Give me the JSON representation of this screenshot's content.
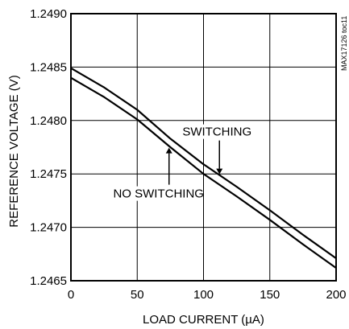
{
  "figure_id": "MAX17126 toc11",
  "chart_data": {
    "type": "line",
    "xlabel": "LOAD CURRENT (µA)",
    "ylabel": "REFERENCE VOLTAGE (V)",
    "xlim": [
      0,
      200
    ],
    "ylim": [
      1.2465,
      1.249
    ],
    "x_ticks": [
      "0",
      "50",
      "100",
      "150",
      "200"
    ],
    "y_ticks": [
      "1.2465",
      "1.2470",
      "1.2475",
      "1.2480",
      "1.2485",
      "1.2490"
    ],
    "grid": true,
    "series": [
      {
        "name": "SWITCHING",
        "x": [
          0,
          25,
          50,
          75,
          100,
          125,
          150,
          175,
          200
        ],
        "y": [
          1.24849,
          1.24831,
          1.2481,
          1.24783,
          1.24759,
          1.24738,
          1.24716,
          1.24693,
          1.24671
        ]
      },
      {
        "name": "NO SWITCHING",
        "x": [
          0,
          25,
          50,
          75,
          100,
          125,
          150,
          175,
          200
        ],
        "y": [
          1.2484,
          1.24822,
          1.24801,
          1.24775,
          1.2475,
          1.24729,
          1.24707,
          1.24684,
          1.24662
        ]
      }
    ],
    "annotations": [
      {
        "text": "SWITCHING",
        "series": "SWITCHING",
        "x_at": 112
      },
      {
        "text": "NO SWITCHING",
        "series": "NO SWITCHING",
        "x_at": 74
      }
    ]
  }
}
